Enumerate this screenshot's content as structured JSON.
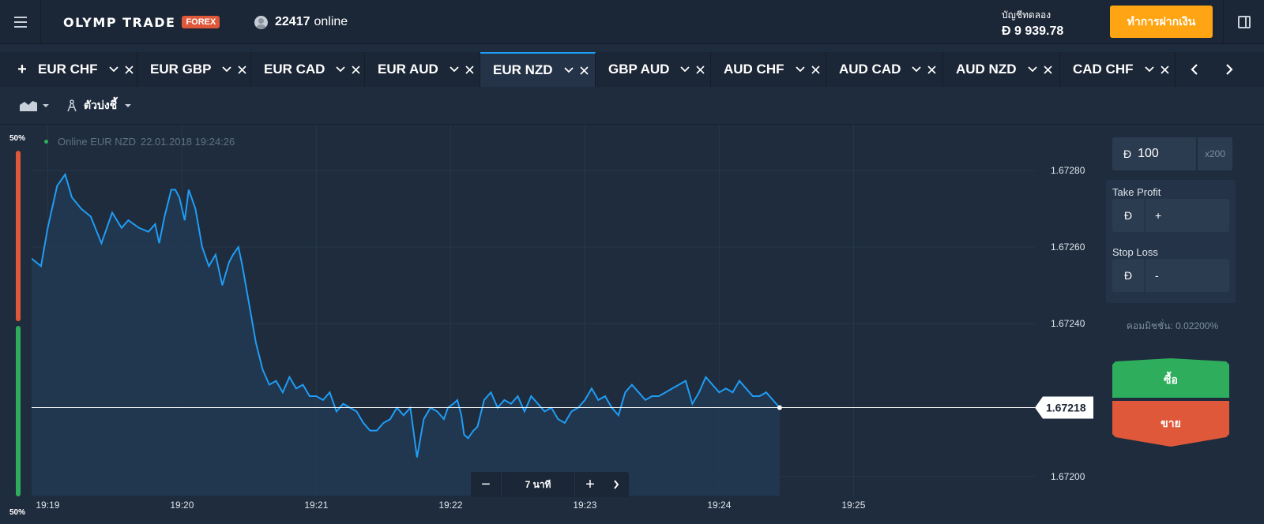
{
  "header": {
    "logo_text": "OLYMP TRADE",
    "logo_badge": "FOREX",
    "online_count": "22417",
    "online_label": "online",
    "account_label": "บัญชีทดลอง",
    "account_balance": "Đ 9 939.78",
    "deposit_label": "ทำการฝากเงิน",
    "icons": [
      "menu-icon",
      "user-icon",
      "layout-icon"
    ]
  },
  "tabs": {
    "add_label": "+",
    "items": [
      {
        "label": "EUR CHF",
        "active": false
      },
      {
        "label": "EUR GBP",
        "active": false
      },
      {
        "label": "EUR CAD",
        "active": false
      },
      {
        "label": "EUR AUD",
        "active": false
      },
      {
        "label": "EUR NZD",
        "active": true
      },
      {
        "label": "GBP AUD",
        "active": false
      },
      {
        "label": "AUD CHF",
        "active": false
      },
      {
        "label": "AUD CAD",
        "active": false
      },
      {
        "label": "AUD NZD",
        "active": false
      },
      {
        "label": "CAD CHF",
        "active": false
      }
    ]
  },
  "toolbar": {
    "indicators_label": "ตัวบ่งชี้"
  },
  "sentiment": {
    "top": "50%",
    "bottom": "50%",
    "sell_share": 0.5,
    "buy_share": 0.5
  },
  "chart": {
    "status_label": "Online EUR NZD",
    "timestamp": "22.01.2018 19:24:26",
    "current_price": "1.67218",
    "zoom_label": "7 นาที",
    "zoom_minus": "−",
    "zoom_plus": "+"
  },
  "chart_data": {
    "type": "area",
    "title": "",
    "ylim": [
      1.67195,
      1.67292
    ],
    "y_ticks": [
      "1.67280",
      "1.67260",
      "1.67240",
      "1.67200"
    ],
    "x_ticks": [
      "19:19",
      "19:20",
      "19:21",
      "19:22",
      "19:23",
      "19:24",
      "19:25"
    ],
    "current": 1.67218,
    "series": [
      {
        "x": [
          18.88,
          18.95,
          19.0,
          19.07,
          19.13,
          19.18,
          19.25,
          19.32,
          19.4,
          19.48,
          19.55,
          19.6,
          19.68,
          19.75,
          19.8,
          19.83,
          19.87,
          19.92,
          19.95,
          19.98,
          20.02,
          20.05,
          20.1,
          20.15,
          20.2,
          20.25,
          20.3,
          20.35,
          20.38,
          20.42,
          20.45,
          20.5,
          20.55,
          20.6,
          20.65,
          20.7,
          20.75,
          20.8,
          20.85,
          20.9,
          20.95,
          21.0,
          21.05,
          21.1,
          21.15,
          21.2,
          21.25,
          21.3,
          21.35,
          21.4,
          21.45,
          21.5,
          21.55,
          21.6,
          21.65,
          21.7,
          21.75,
          21.8,
          21.85,
          21.9,
          21.95,
          21.98,
          22.02,
          22.05,
          22.08,
          22.1,
          22.13,
          22.17,
          22.2,
          22.25,
          22.3,
          22.35,
          22.4,
          22.45,
          22.5,
          22.55,
          22.6,
          22.65,
          22.7,
          22.75,
          22.8,
          22.85,
          22.9,
          22.95,
          23.0,
          23.05,
          23.1,
          23.15,
          23.2,
          23.25,
          23.3,
          23.35,
          23.4,
          23.45,
          23.5,
          23.55,
          23.6,
          23.65,
          23.7,
          23.75,
          23.8,
          23.85,
          23.9,
          23.95,
          24.0,
          24.05,
          24.1,
          24.15,
          24.2,
          24.25,
          24.3,
          24.35,
          24.4,
          24.45
        ],
        "values": [
          1.67257,
          1.67255,
          1.67265,
          1.67276,
          1.67279,
          1.67273,
          1.6727,
          1.67268,
          1.67261,
          1.67269,
          1.67265,
          1.67267,
          1.67265,
          1.67264,
          1.67266,
          1.67261,
          1.67268,
          1.67275,
          1.67275,
          1.67273,
          1.67267,
          1.67275,
          1.6727,
          1.6726,
          1.67255,
          1.67258,
          1.6725,
          1.67256,
          1.67258,
          1.6726,
          1.67255,
          1.67245,
          1.67235,
          1.67228,
          1.67224,
          1.67225,
          1.67222,
          1.67226,
          1.67223,
          1.67224,
          1.67221,
          1.67221,
          1.6722,
          1.67222,
          1.67217,
          1.67219,
          1.67218,
          1.67217,
          1.67214,
          1.67212,
          1.67212,
          1.67214,
          1.67215,
          1.67218,
          1.67216,
          1.67218,
          1.67205,
          1.67215,
          1.67218,
          1.67217,
          1.67215,
          1.67218,
          1.67219,
          1.6722,
          1.67216,
          1.67211,
          1.6721,
          1.67212,
          1.67213,
          1.6722,
          1.67222,
          1.67218,
          1.6722,
          1.67219,
          1.67221,
          1.67217,
          1.67221,
          1.67219,
          1.67217,
          1.67218,
          1.67215,
          1.67214,
          1.67217,
          1.67218,
          1.6722,
          1.67223,
          1.6722,
          1.67221,
          1.67218,
          1.67216,
          1.67222,
          1.67224,
          1.67222,
          1.6722,
          1.67221,
          1.67221,
          1.67222,
          1.67223,
          1.67224,
          1.67225,
          1.67219,
          1.67222,
          1.67226,
          1.67224,
          1.67222,
          1.67223,
          1.67222,
          1.67225,
          1.67223,
          1.67221,
          1.67221,
          1.67222,
          1.6722,
          1.67218
        ]
      }
    ]
  },
  "panel": {
    "amount_currency": "Đ",
    "amount_value": "100",
    "multiplier": "x200",
    "take_profit_label": "Take Profit",
    "take_profit_currency": "Đ",
    "take_profit_sign": "+",
    "stop_loss_label": "Stop Loss",
    "stop_loss_currency": "Đ",
    "stop_loss_sign": "-",
    "commission": "คอมมิชชั่น: 0.02200%",
    "buy_label": "ซื้อ",
    "sell_label": "ขาย",
    "buy_color": "#2eae5d",
    "sell_color": "#e0583a"
  },
  "colors": {
    "accent": "#1f9df5",
    "deposit": "#ffa412"
  }
}
